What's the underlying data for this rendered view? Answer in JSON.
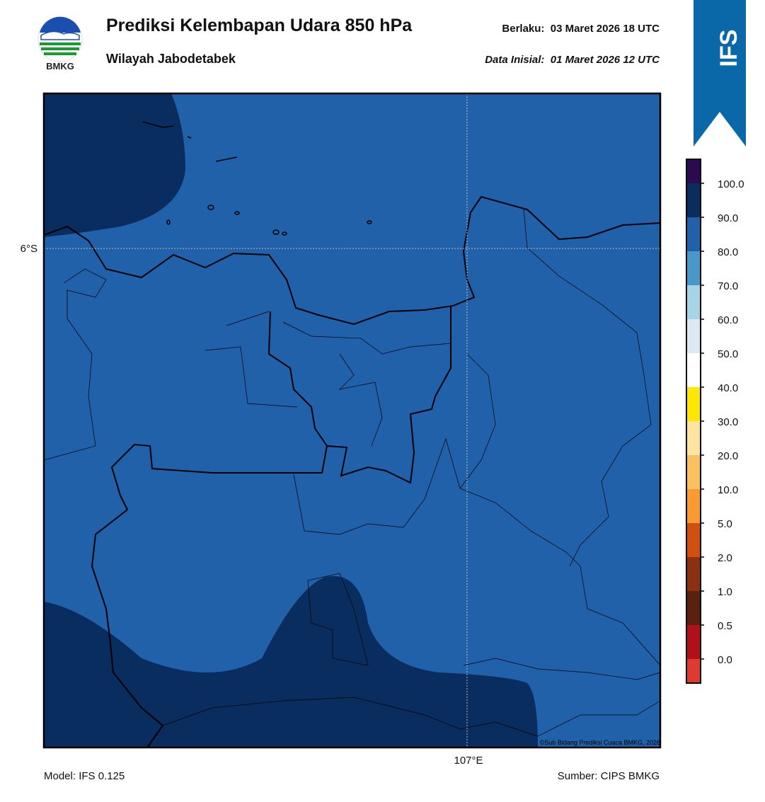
{
  "header": {
    "logo_text": "BMKG",
    "title": "Prediksi Kelembapan Udara 850 hPa",
    "subtitle": "Wilayah Jabodetabek",
    "valid_label": "Berlaku:  03 Maret 2026 18 UTC",
    "init_label": "Data Inisial:  01 Maret 2026 12 UTC",
    "badge": "IFS"
  },
  "map": {
    "lat_label": "6°S",
    "lon_label": "107°E",
    "credit": "©Sub Bidang Prediksi Cuaca BMKG, 2026"
  },
  "colorbar": {
    "ticks": [
      "0.0",
      "0.5",
      "1.0",
      "2.0",
      "5.0",
      "10.0",
      "20.0",
      "30.0",
      "40.0",
      "50.0",
      "60.0",
      "70.0",
      "80.0",
      "90.0",
      "100.0"
    ]
  },
  "footer": {
    "model": "Model: IFS 0.125",
    "source": "Sumber: CIPS BMKG"
  }
}
